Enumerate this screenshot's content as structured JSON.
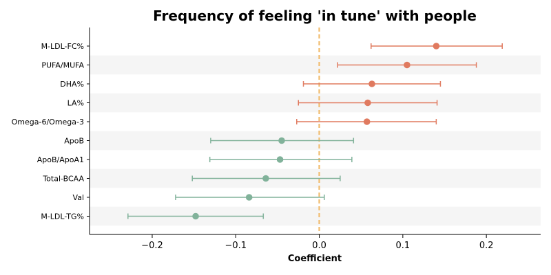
{
  "chart_data": {
    "type": "forest",
    "title": "Frequency of feeling 'in tune' with people",
    "xlabel": "Coefficient",
    "ylabel": "",
    "xlim": [
      -0.275,
      0.265
    ],
    "xticks": [
      -0.2,
      -0.1,
      0.0,
      0.1,
      0.2
    ],
    "xtick_labels": [
      "−0.2",
      "−0.1",
      "0.0",
      "0.1",
      "0.2"
    ],
    "reference_line": 0.0,
    "grid": false,
    "categories": [
      "M-LDL-FC%",
      "PUFA/MUFA",
      "DHA%",
      "LA%",
      "Omega-6/Omega-3",
      "ApoB",
      "ApoB/ApoA1",
      "Total-BCAA",
      "Val",
      "M-LDL-TG%"
    ],
    "points": [
      {
        "label": "M-LDL-FC%",
        "value": 0.14,
        "ci_low": 0.062,
        "ci_high": 0.219,
        "direction": "positive"
      },
      {
        "label": "PUFA/MUFA",
        "value": 0.105,
        "ci_low": 0.022,
        "ci_high": 0.188,
        "direction": "positive"
      },
      {
        "label": "DHA%",
        "value": 0.063,
        "ci_low": -0.019,
        "ci_high": 0.145,
        "direction": "positive"
      },
      {
        "label": "LA%",
        "value": 0.058,
        "ci_low": -0.025,
        "ci_high": 0.141,
        "direction": "positive"
      },
      {
        "label": "Omega-6/Omega-3",
        "value": 0.057,
        "ci_low": -0.027,
        "ci_high": 0.14,
        "direction": "positive"
      },
      {
        "label": "ApoB",
        "value": -0.045,
        "ci_low": -0.13,
        "ci_high": 0.041,
        "direction": "negative"
      },
      {
        "label": "ApoB/ApoA1",
        "value": -0.047,
        "ci_low": -0.131,
        "ci_high": 0.039,
        "direction": "negative"
      },
      {
        "label": "Total-BCAA",
        "value": -0.064,
        "ci_low": -0.152,
        "ci_high": 0.025,
        "direction": "negative"
      },
      {
        "label": "Val",
        "value": -0.084,
        "ci_low": -0.172,
        "ci_high": 0.006,
        "direction": "negative"
      },
      {
        "label": "M-LDL-TG%",
        "value": -0.148,
        "ci_low": -0.229,
        "ci_high": -0.067,
        "direction": "negative"
      }
    ],
    "colors": {
      "positive": "#e07a5f",
      "negative": "#81b29a",
      "reference_line": "#f2c27b",
      "band": "#f5f5f5"
    }
  }
}
